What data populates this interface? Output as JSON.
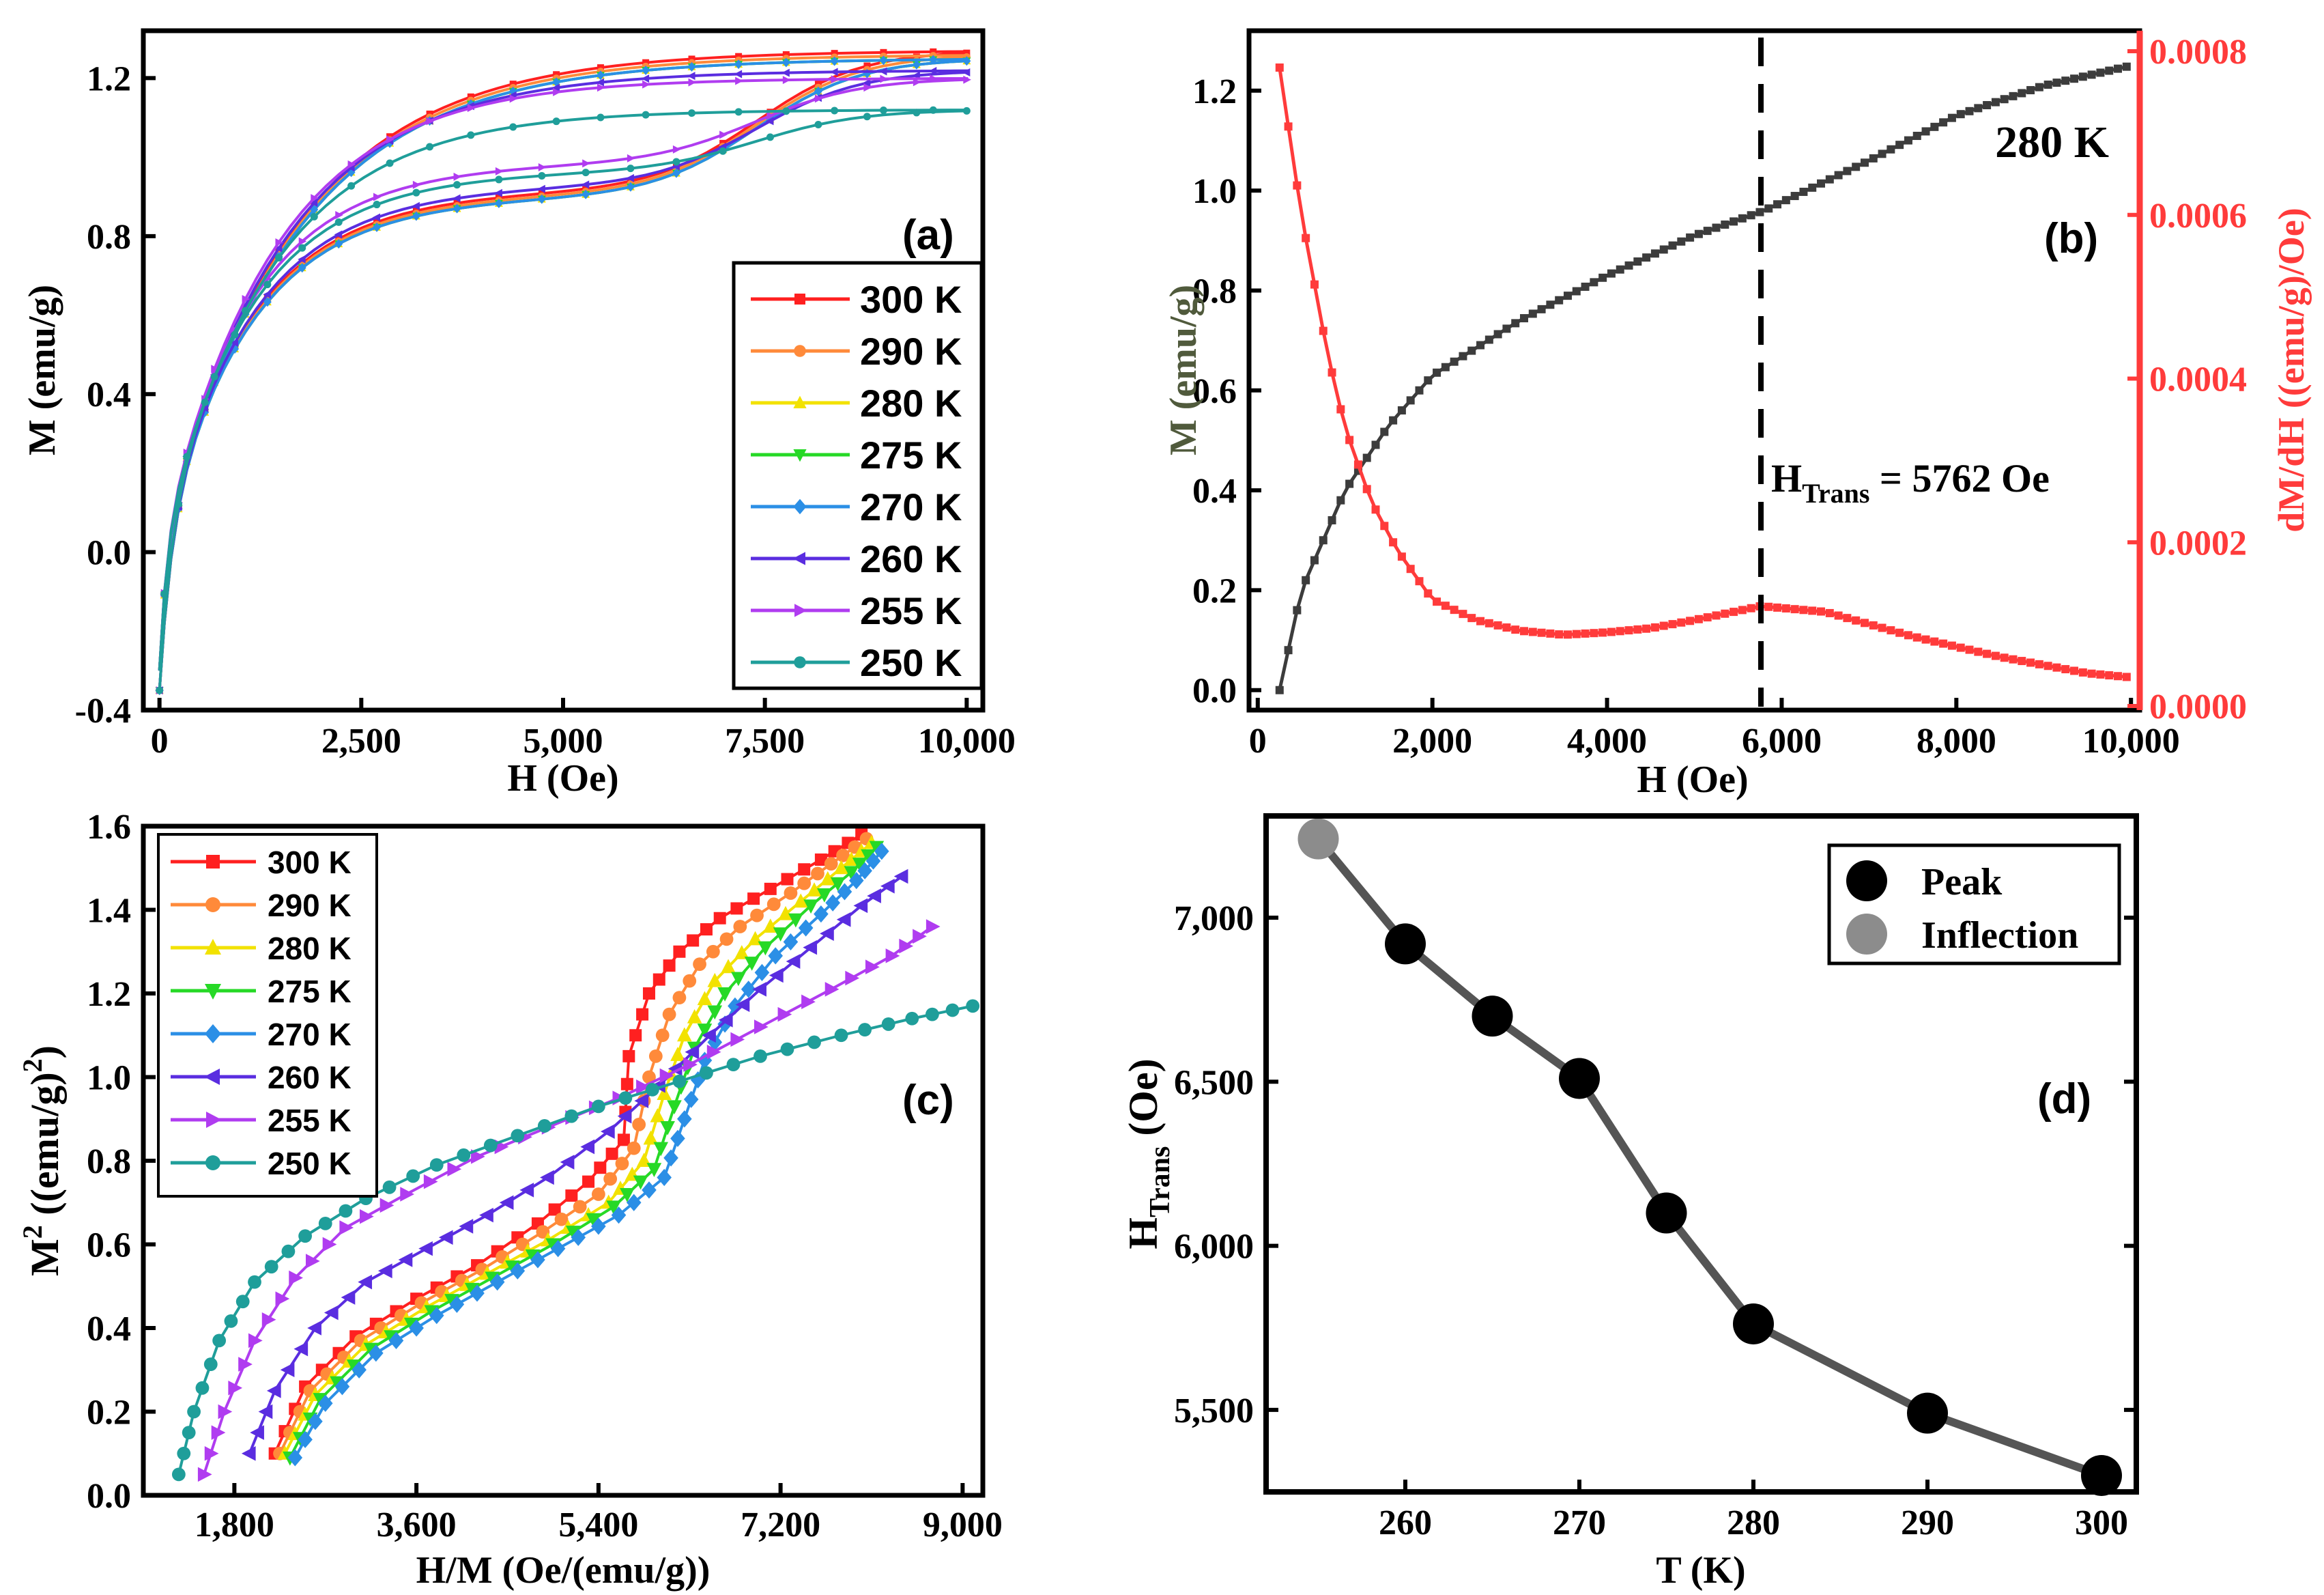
{
  "chart_data": [
    {
      "panel": "(a)",
      "type": "line",
      "xlabel": "H (Oe)",
      "ylabel": "M (emu/g)",
      "xlim": [
        -200,
        10200
      ],
      "ylim": [
        -0.4,
        1.32
      ],
      "xticks": [
        0,
        2500,
        5000,
        7500,
        10000
      ],
      "xtick_labels": [
        "0",
        "2,500",
        "5,000",
        "7,500",
        "10,000"
      ],
      "yticks": [
        -0.4,
        0.0,
        0.4,
        0.8,
        1.2
      ],
      "ytick_labels": [
        "-0.4",
        "0.0",
        "0.4",
        "0.8",
        "1.2"
      ],
      "legend_position": "bottom-right",
      "series": [
        {
          "name": "300 K",
          "color": "#ff2020",
          "marker": "square",
          "msat": 1.27,
          "lower": 0.72,
          "knee": 0.8,
          "tail": 0.0
        },
        {
          "name": "290 K",
          "color": "#ff8a3a",
          "marker": "circle",
          "msat": 1.26,
          "lower": 0.72,
          "knee": 0.8,
          "tail": 0.0
        },
        {
          "name": "280 K",
          "color": "#f2e200",
          "marker": "triangle-up",
          "msat": 1.25,
          "lower": 0.72,
          "knee": 0.8,
          "tail": 0.0
        },
        {
          "name": "275 K",
          "color": "#26d926",
          "marker": "triangle-down",
          "msat": 1.25,
          "lower": 0.72,
          "knee": 0.8,
          "tail": 0.0
        },
        {
          "name": "270 K",
          "color": "#2b8fe6",
          "marker": "diamond",
          "msat": 1.25,
          "lower": 0.72,
          "knee": 0.8,
          "tail": 0.0
        },
        {
          "name": "260 K",
          "color": "#5a2de0",
          "marker": "triangle-left",
          "msat": 1.22,
          "lower": 0.76,
          "knee": 0.65,
          "tail": 0.0
        },
        {
          "name": "255 K",
          "color": "#b03cf0",
          "marker": "triangle-right",
          "msat": 1.2,
          "lower": 0.82,
          "knee": 0.55,
          "tail": 0.0
        },
        {
          "name": "250 K",
          "color": "#1f9e9a",
          "marker": "circle",
          "msat": 1.12,
          "lower": 0.86,
          "knee": 0.5,
          "tail": 0.0
        }
      ]
    },
    {
      "panel": "(b)",
      "type": "line",
      "annotation_temp": "280 K",
      "annotation_htrans_main": "H",
      "annotation_htrans_sub": "Trans",
      "annotation_htrans_rest": " = 5762 Oe",
      "transition_field": 5762,
      "xlabel": "H (Oe)",
      "ylabel_left": "M (emu/g)",
      "ylabel_right": "dM/dH ((emu/g)/Oe)",
      "xlim": [
        -100,
        10100
      ],
      "ylim_left": [
        -0.04,
        1.32
      ],
      "ylim_right": [
        -5e-06,
        0.0008
      ],
      "xticks": [
        0,
        2000,
        4000,
        6000,
        8000,
        10000
      ],
      "xtick_labels": [
        "0",
        "2,000",
        "4,000",
        "6,000",
        "8,000",
        "10,000"
      ],
      "yticks_left": [
        0.0,
        0.2,
        0.4,
        0.6,
        0.8,
        1.0,
        1.2
      ],
      "ytick_labels_left": [
        "0.0",
        "0.2",
        "0.4",
        "0.6",
        "0.8",
        "1.0",
        "1.2"
      ],
      "yticks_right": [
        0.0,
        0.0002,
        0.0004,
        0.0006,
        0.0008
      ],
      "ytick_labels_right": [
        "0.0000",
        "0.0002",
        "0.0004",
        "0.0006",
        "0.0008"
      ],
      "series": [
        {
          "name": "M",
          "axis": "left",
          "color": "#3c3c3c",
          "x": [
            250,
            500,
            1000,
            1500,
            2000,
            3000,
            4000,
            5000,
            5800,
            7000,
            8000,
            9000,
            10000
          ],
          "y": [
            0.0,
            0.2,
            0.4,
            0.53,
            0.63,
            0.74,
            0.83,
            0.91,
            0.96,
            1.06,
            1.15,
            1.21,
            1.25
          ]
        },
        {
          "name": "dM/dH",
          "axis": "right",
          "color": "#ff3b3b",
          "x": [
            250,
            500,
            800,
            1000,
            1300,
            1600,
            2000,
            2500,
            3000,
            3500,
            4000,
            4500,
            5000,
            5762,
            6500,
            7500,
            8500,
            9500,
            10000
          ],
          "y": [
            0.00078,
            0.0006,
            0.00043,
            0.00034,
            0.00025,
            0.00019,
            0.00013,
            0.000105,
            9.2e-05,
            8.7e-05,
            9e-05,
            9.5e-05,
            0.000105,
            0.000122,
            0.000115,
            8.5e-05,
            6e-05,
            4e-05,
            3.5e-05
          ]
        }
      ]
    },
    {
      "panel": "(c)",
      "type": "line",
      "xlabel": "H/M (Oe/(emu/g))",
      "ylabel_main": "M",
      "ylabel_sup": "2",
      "ylabel_mid": " ((emu/g)",
      "ylabel_sup2": "2",
      "ylabel_end": ")",
      "xlim": [
        900,
        9200
      ],
      "ylim": [
        0.0,
        1.6
      ],
      "xticks": [
        1800,
        3600,
        5400,
        7200,
        9000
      ],
      "xtick_labels": [
        "1,800",
        "3,600",
        "5,400",
        "7,200",
        "9,000"
      ],
      "yticks": [
        0.0,
        0.2,
        0.4,
        0.6,
        0.8,
        1.0,
        1.2,
        1.4,
        1.6
      ],
      "ytick_labels": [
        "0.0",
        "0.2",
        "0.4",
        "0.6",
        "0.8",
        "1.0",
        "1.2",
        "1.4",
        "1.6"
      ],
      "legend_position": "top-left",
      "series": [
        {
          "name": "300 K",
          "color": "#ff2020",
          "marker": "square",
          "x": [
            2200,
            2500,
            3000,
            3600,
            4200,
            4800,
            5300,
            5650,
            5700,
            5900,
            6200,
            6600,
            7100,
            7600,
            8000
          ],
          "y": [
            0.1,
            0.26,
            0.38,
            0.47,
            0.55,
            0.65,
            0.75,
            0.85,
            1.05,
            1.2,
            1.3,
            1.38,
            1.45,
            1.52,
            1.58
          ]
        },
        {
          "name": "290 K",
          "color": "#ff8a3a",
          "marker": "circle",
          "x": [
            2250,
            2550,
            3050,
            3650,
            4250,
            4850,
            5400,
            5750,
            5900,
            6100,
            6400,
            6800,
            7300,
            7700,
            8050
          ],
          "y": [
            0.1,
            0.25,
            0.37,
            0.46,
            0.54,
            0.63,
            0.72,
            0.83,
            1.0,
            1.15,
            1.27,
            1.36,
            1.44,
            1.51,
            1.57
          ]
        },
        {
          "name": "280 K",
          "color": "#f2e200",
          "marker": "triangle-up",
          "x": [
            2300,
            2600,
            3100,
            3700,
            4300,
            4900,
            5500,
            5850,
            6050,
            6250,
            6550,
            6950,
            7400,
            7800,
            8100
          ],
          "y": [
            0.1,
            0.24,
            0.36,
            0.45,
            0.53,
            0.61,
            0.7,
            0.8,
            0.96,
            1.1,
            1.23,
            1.33,
            1.42,
            1.5,
            1.56
          ]
        },
        {
          "name": "275 K",
          "color": "#26d926",
          "marker": "triangle-down",
          "x": [
            2350,
            2650,
            3150,
            3750,
            4350,
            4950,
            5550,
            5950,
            6150,
            6350,
            6650,
            7050,
            7500,
            7900,
            8150
          ],
          "y": [
            0.09,
            0.23,
            0.35,
            0.44,
            0.52,
            0.6,
            0.69,
            0.78,
            0.93,
            1.07,
            1.2,
            1.31,
            1.41,
            1.49,
            1.55
          ]
        },
        {
          "name": "270 K",
          "color": "#2b8fe6",
          "marker": "diamond",
          "x": [
            2400,
            2700,
            3200,
            3800,
            4400,
            5000,
            5600,
            6050,
            6250,
            6450,
            6750,
            7150,
            7600,
            7950,
            8200
          ],
          "y": [
            0.09,
            0.22,
            0.34,
            0.43,
            0.51,
            0.59,
            0.67,
            0.76,
            0.9,
            1.04,
            1.17,
            1.29,
            1.39,
            1.47,
            1.54
          ]
        },
        {
          "name": "260 K",
          "color": "#5a2de0",
          "marker": "triangle-left",
          "x": [
            1950,
            2200,
            2600,
            3100,
            3700,
            4300,
            4900,
            5500,
            6000,
            6500,
            7000,
            7500,
            8000,
            8400
          ],
          "y": [
            0.1,
            0.25,
            0.4,
            0.51,
            0.59,
            0.67,
            0.76,
            0.87,
            0.98,
            1.1,
            1.21,
            1.31,
            1.41,
            1.48
          ]
        },
        {
          "name": "255 K",
          "color": "#b03cf0",
          "marker": "triangle-right",
          "x": [
            1500,
            1700,
            2000,
            2400,
            2900,
            3500,
            4200,
            4900,
            5600,
            6300,
            7000,
            7700,
            8300,
            8700
          ],
          "y": [
            0.05,
            0.2,
            0.37,
            0.52,
            0.64,
            0.72,
            0.81,
            0.88,
            0.95,
            1.03,
            1.12,
            1.21,
            1.29,
            1.36
          ]
        },
        {
          "name": "250 K",
          "color": "#1f9e9a",
          "marker": "circle",
          "x": [
            1250,
            1400,
            1650,
            2000,
            2500,
            3100,
            3800,
            4600,
            5400,
            6200,
            7000,
            7800,
            8500,
            9100
          ],
          "y": [
            0.05,
            0.2,
            0.37,
            0.51,
            0.62,
            0.71,
            0.79,
            0.86,
            0.93,
            0.99,
            1.05,
            1.1,
            1.14,
            1.17
          ]
        }
      ]
    },
    {
      "panel": "(d)",
      "type": "line",
      "xlabel": "T (K)",
      "ylabel_main": "H",
      "ylabel_sub": "Trans",
      "ylabel_rest": " (Oe)",
      "xlim": [
        252,
        302
      ],
      "ylim": [
        5250,
        7310
      ],
      "xticks": [
        260,
        270,
        280,
        290,
        300
      ],
      "xtick_labels": [
        "260",
        "270",
        "280",
        "290",
        "300"
      ],
      "yticks": [
        5500,
        6000,
        6500,
        7000
      ],
      "ytick_labels": [
        "5,500",
        "6,000",
        "6,500",
        "7,000"
      ],
      "legend_position": "top-right",
      "legend": [
        {
          "name": "Peak",
          "color": "#000000"
        },
        {
          "name": "Inflection",
          "color": "#8c8c8c"
        }
      ],
      "line_color": "#555555",
      "series": [
        {
          "name": "Peak",
          "x": [
            260,
            265,
            270,
            275,
            280,
            290,
            300
          ],
          "y": [
            6920,
            6700,
            6510,
            6100,
            5762,
            5490,
            5300
          ]
        },
        {
          "name": "Inflection",
          "x": [
            255
          ],
          "y": [
            7240
          ]
        }
      ]
    }
  ]
}
